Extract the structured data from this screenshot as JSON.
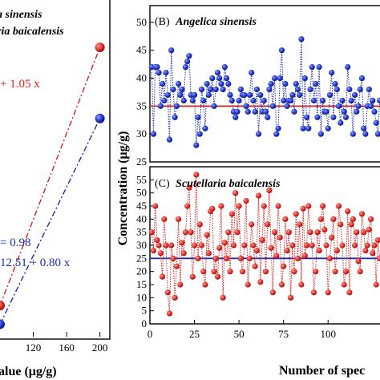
{
  "colors": {
    "red": "#e0201c",
    "blue": "#1a2fb4",
    "red_marker": "#e53a35",
    "blue_marker": "#2a3fd0"
  },
  "chart_data": [
    {
      "panel": "A",
      "type": "scatter",
      "legend": [
        "a sinensis",
        "ria baicalensis"
      ],
      "annotations": {
        "red_equation": "+ 1.05 x",
        "r_value": "= 0.98",
        "blue_equation": "12.51 + 0.80 x"
      },
      "xlabel": "alue (μg/g)",
      "xticks": [
        "120",
        "160",
        "200"
      ],
      "xlim": [
        80,
        210
      ],
      "ylim": [
        0,
        270
      ],
      "series": [
        {
          "color": "red",
          "points": [
            [
              80,
              25
            ],
            [
              200,
              232
            ]
          ]
        },
        {
          "color": "blue",
          "points": [
            [
              80,
              10
            ],
            [
              200,
              175
            ]
          ]
        }
      ]
    },
    {
      "panel": "B",
      "title": "(B)",
      "species": "Angelica sinensis",
      "type": "line",
      "ylim": [
        25,
        53
      ],
      "yticks": [
        "25",
        "30",
        "35",
        "40",
        "45",
        "50"
      ],
      "xlim": [
        0,
        135
      ],
      "mean_line": 35,
      "values": [
        42,
        30,
        42,
        42,
        41,
        35,
        39,
        36,
        41,
        37,
        29,
        45,
        38,
        33,
        35,
        39,
        37,
        38,
        36,
        42,
        43,
        44,
        37,
        36,
        37,
        28,
        33,
        30,
        38,
        36,
        31,
        39,
        37,
        38,
        40,
        35,
        38,
        41,
        40,
        39,
        38,
        42,
        40,
        39,
        37,
        36,
        34,
        33,
        34,
        36,
        38,
        37,
        37,
        35,
        34,
        37,
        41,
        36,
        34,
        38,
        30,
        37,
        34,
        36,
        34,
        33,
        38,
        39,
        35,
        40,
        30,
        31,
        40,
        45,
        36,
        39,
        35,
        36,
        36,
        37,
        34,
        39,
        38,
        37,
        47,
        31,
        40,
        33,
        31,
        38,
        42,
        36,
        39,
        33,
        42,
        30,
        36,
        34,
        34,
        31,
        37,
        41,
        33,
        39,
        38,
        35,
        32,
        36,
        34,
        33,
        42,
        38,
        36,
        30,
        37,
        34,
        35,
        38,
        40,
        31,
        30,
        35,
        38,
        35,
        36,
        34,
        32,
        30,
        36
      ]
    },
    {
      "panel": "C",
      "title": "(C)",
      "species": "Scutellaria baicalensis",
      "type": "line",
      "ylim": [
        0,
        60
      ],
      "yticks": [
        "0",
        "5",
        "10",
        "15",
        "20",
        "25",
        "30",
        "35",
        "40",
        "45",
        "50",
        "55"
      ],
      "xlim": [
        0,
        135
      ],
      "xticks": [
        "0",
        "25",
        "50",
        "75",
        "100"
      ],
      "mean_line": 25,
      "values": [
        35,
        28,
        45,
        32,
        30,
        27,
        18,
        40,
        30,
        12,
        4,
        30,
        25,
        10,
        22,
        40,
        15,
        31,
        27,
        35,
        45,
        52,
        35,
        18,
        30,
        57,
        25,
        38,
        30,
        20,
        15,
        34,
        27,
        43,
        44,
        20,
        25,
        18,
        29,
        45,
        10,
        31,
        25,
        35,
        20,
        42,
        30,
        50,
        35,
        45,
        25,
        20,
        30,
        47,
        15,
        25,
        38,
        30,
        22,
        28,
        49,
        16,
        32,
        45,
        20,
        38,
        51,
        29,
        12,
        35,
        26,
        45,
        33,
        15,
        22,
        40,
        28,
        35,
        10,
        30,
        20,
        42,
        25,
        38,
        15,
        44,
        26,
        30,
        45,
        35,
        30,
        12,
        20,
        35,
        28,
        40,
        45,
        36,
        30,
        12,
        25,
        33,
        40,
        20,
        28,
        45,
        38,
        30,
        15,
        20,
        43,
        12,
        38,
        40,
        30,
        35,
        24,
        20,
        42,
        35,
        28,
        30,
        36,
        40,
        27,
        30,
        15,
        32,
        25
      ]
    }
  ],
  "axes_text": {
    "ylabel_shared": "Concentration (μg/g)",
    "xlabel_right": "Number of spec"
  }
}
